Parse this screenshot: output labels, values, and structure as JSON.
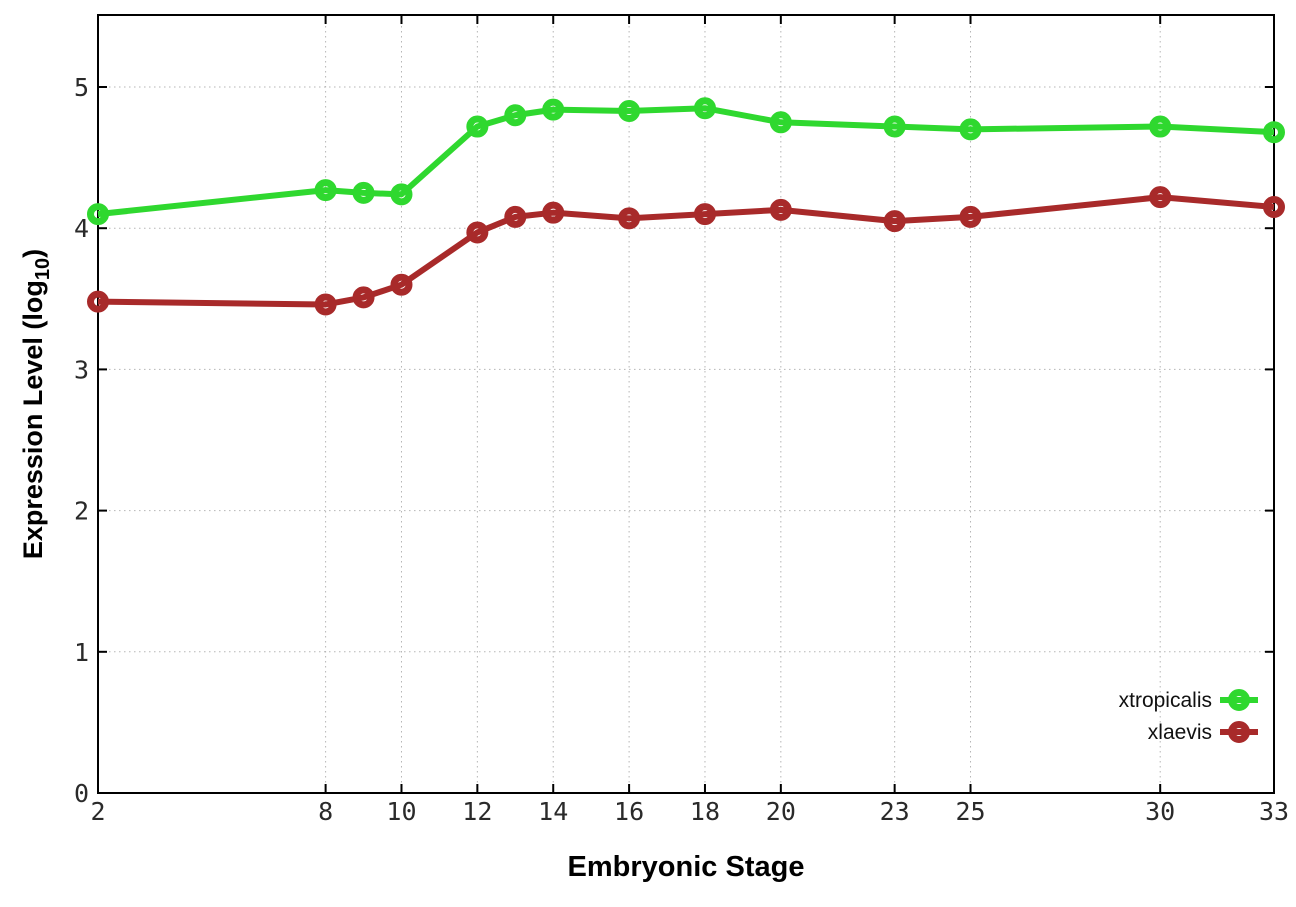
{
  "chart_data": {
    "type": "line",
    "xlabel": "Embryonic Stage",
    "ylabel": "Expression Level (log10)",
    "ylabel_parts": {
      "pre": "Expression Level (log",
      "sub": "10",
      "post": ")"
    },
    "x": [
      2,
      8,
      9,
      10,
      12,
      13,
      14,
      16,
      18,
      20,
      23,
      25,
      30,
      33
    ],
    "series": [
      {
        "name": "xtropicalis",
        "color": "#2fd82f",
        "marker": "open-circle",
        "values": [
          4.1,
          4.27,
          4.25,
          4.24,
          4.72,
          4.8,
          4.84,
          4.83,
          4.85,
          4.75,
          4.72,
          4.7,
          4.72,
          4.68
        ]
      },
      {
        "name": "xlaevis",
        "color": "#a82a2a",
        "marker": "open-circle",
        "values": [
          3.48,
          3.46,
          3.51,
          3.6,
          3.97,
          4.08,
          4.11,
          4.07,
          4.1,
          4.13,
          4.05,
          4.08,
          4.22,
          4.15
        ]
      }
    ],
    "xticks": [
      2,
      8,
      10,
      12,
      14,
      16,
      18,
      20,
      23,
      25,
      30,
      33
    ],
    "yticks": [
      0,
      1,
      2,
      3,
      4,
      5
    ],
    "xlim": [
      2,
      33
    ],
    "ylim": [
      0,
      5.51
    ],
    "grid": true,
    "grid_style": "dotted",
    "legend_position": "inside-bottom-right",
    "background_color": "#ffffff",
    "grid_color": "#b5b5b5",
    "axis_color": "#000000"
  }
}
